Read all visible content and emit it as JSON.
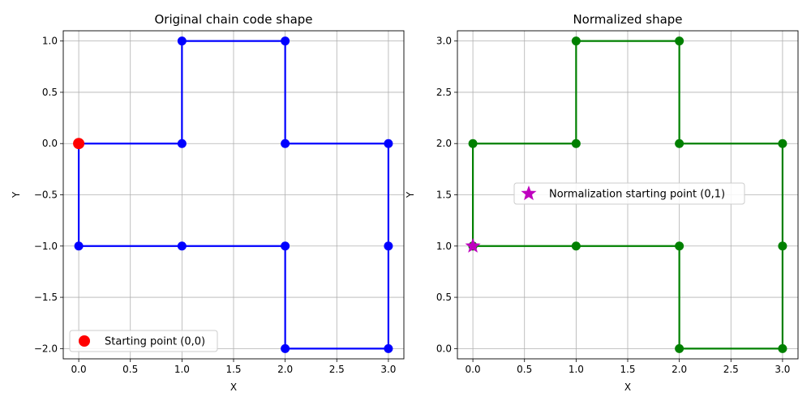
{
  "chart_data": [
    {
      "type": "line",
      "title": "Original chain code shape",
      "xlabel": "X",
      "ylabel": "Y",
      "xlim": [
        -0.15,
        3.15
      ],
      "ylim": [
        -2.1,
        1.1
      ],
      "xticks": [
        0.0,
        0.5,
        1.0,
        1.5,
        2.0,
        2.5,
        3.0
      ],
      "xtick_labels": [
        "0.0",
        "0.5",
        "1.0",
        "1.5",
        "2.0",
        "2.5",
        "3.0"
      ],
      "yticks": [
        -2.0,
        -1.5,
        -1.0,
        -0.5,
        0.0,
        0.5,
        1.0
      ],
      "ytick_labels": [
        "−2.0",
        "−1.5",
        "−1.0",
        "−0.5",
        "0.0",
        "0.5",
        "1.0"
      ],
      "grid": true,
      "series": [
        {
          "color": "#0000ff",
          "marker": "circle",
          "x": [
            0,
            1,
            1,
            2,
            2,
            3,
            3,
            3,
            2,
            2,
            1,
            0,
            0
          ],
          "y": [
            0,
            0,
            1,
            1,
            0,
            0,
            -1,
            -2,
            -2,
            -1,
            -1,
            -1,
            0
          ]
        }
      ],
      "highlight": {
        "label": "Starting point (0,0)",
        "x": 0,
        "y": 0,
        "color": "#ff0000",
        "marker": "circle"
      },
      "legend": "lower-left"
    },
    {
      "type": "line",
      "title": "Normalized shape",
      "xlabel": "X",
      "ylabel": "Y",
      "xlim": [
        -0.15,
        3.15
      ],
      "ylim": [
        -0.1,
        3.1
      ],
      "xticks": [
        0.0,
        0.5,
        1.0,
        1.5,
        2.0,
        2.5,
        3.0
      ],
      "xtick_labels": [
        "0.0",
        "0.5",
        "1.0",
        "1.5",
        "2.0",
        "2.5",
        "3.0"
      ],
      "yticks": [
        0.0,
        0.5,
        1.0,
        1.5,
        2.0,
        2.5,
        3.0
      ],
      "ytick_labels": [
        "0.0",
        "0.5",
        "1.0",
        "1.5",
        "2.0",
        "2.5",
        "3.0"
      ],
      "grid": true,
      "series": [
        {
          "color": "#008000",
          "marker": "circle",
          "x": [
            0,
            1,
            2,
            2,
            3,
            3,
            3,
            2,
            2,
            1,
            1,
            0,
            0
          ],
          "y": [
            1,
            1,
            1,
            0,
            0,
            1,
            2,
            2,
            3,
            3,
            2,
            2,
            1
          ]
        }
      ],
      "highlight": {
        "label": "Normalization starting point (0,1)",
        "x": 0,
        "y": 1,
        "color": "#bf00bf",
        "marker": "star"
      },
      "legend": "center-left"
    }
  ]
}
